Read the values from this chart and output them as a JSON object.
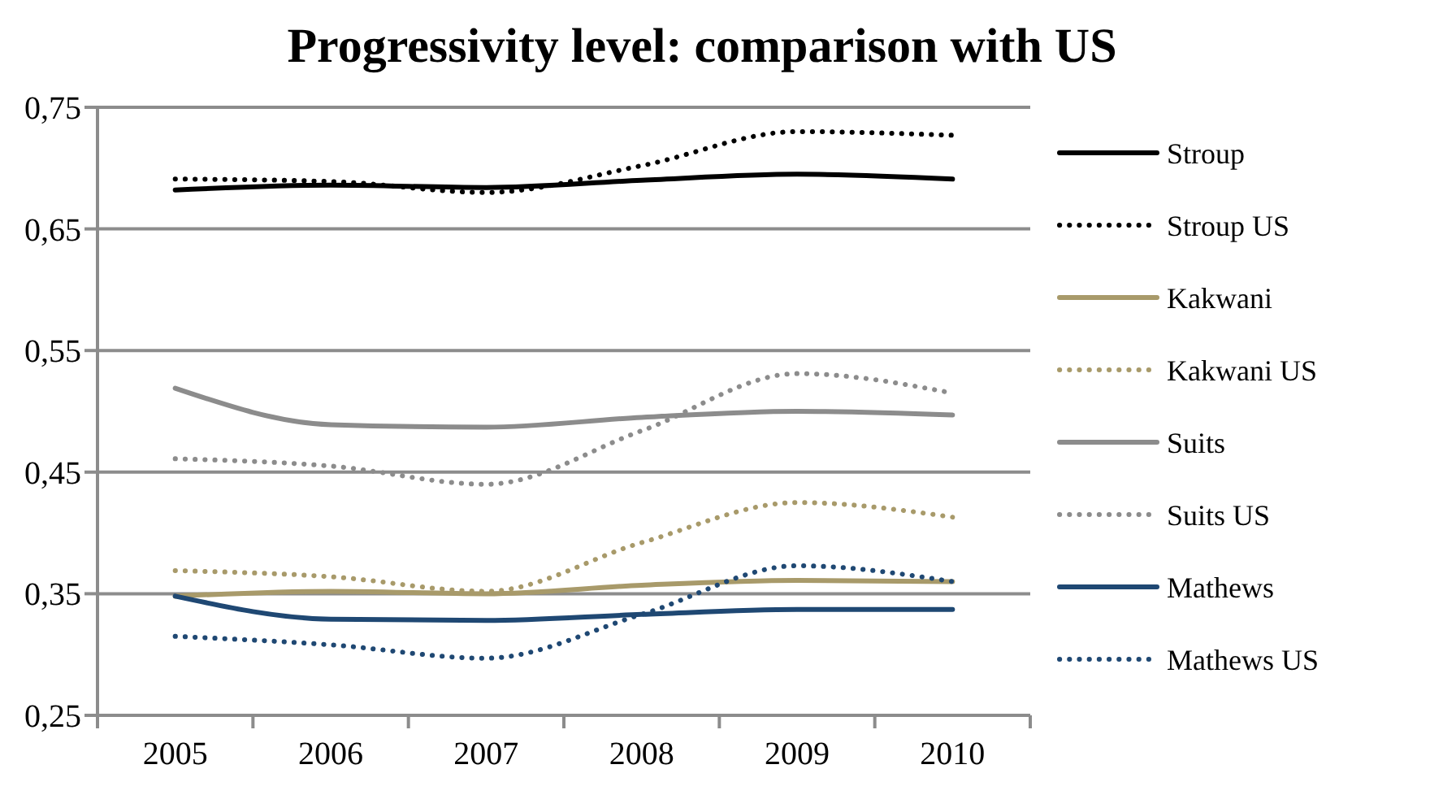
{
  "chart_data": {
    "type": "line",
    "title": "Progressivity level: comparison with US",
    "categories": [
      "2005",
      "2006",
      "2007",
      "2008",
      "2009",
      "2010"
    ],
    "ylim": [
      0.25,
      0.75
    ],
    "yticks": [
      {
        "value": 0.25,
        "label": "0,25"
      },
      {
        "value": 0.35,
        "label": "0,35"
      },
      {
        "value": 0.45,
        "label": "0,45"
      },
      {
        "value": 0.55,
        "label": "0,55"
      },
      {
        "value": 0.65,
        "label": "0,65"
      },
      {
        "value": 0.75,
        "label": "0,75"
      }
    ],
    "grid": "y",
    "legend": "right",
    "marker": "none",
    "series": [
      {
        "name": "Stroup",
        "color": "#000000",
        "line_style": "solid",
        "values": [
          0.682,
          0.686,
          0.684,
          0.69,
          0.695,
          0.691
        ]
      },
      {
        "name": "Stroup US",
        "color": "#000000",
        "line_style": "dotted",
        "values": [
          0.691,
          0.689,
          0.68,
          0.702,
          0.73,
          0.727
        ]
      },
      {
        "name": "Kakwani",
        "color": "#a89a6a",
        "line_style": "solid",
        "values": [
          0.348,
          0.352,
          0.35,
          0.357,
          0.361,
          0.36
        ]
      },
      {
        "name": "Kakwani US",
        "color": "#a89a6a",
        "line_style": "dotted",
        "values": [
          0.369,
          0.364,
          0.352,
          0.392,
          0.425,
          0.413
        ]
      },
      {
        "name": "Suits",
        "color": "#8c8c8c",
        "line_style": "solid",
        "values": [
          0.519,
          0.489,
          0.487,
          0.495,
          0.5,
          0.497
        ]
      },
      {
        "name": "Suits US",
        "color": "#8c8c8c",
        "line_style": "dotted",
        "values": [
          0.461,
          0.455,
          0.44,
          0.484,
          0.531,
          0.515
        ]
      },
      {
        "name": "Mathews",
        "color": "#1f4873",
        "line_style": "solid",
        "values": [
          0.348,
          0.329,
          0.328,
          0.333,
          0.337,
          0.337
        ]
      },
      {
        "name": "Mathews US",
        "color": "#1f4873",
        "line_style": "dotted",
        "values": [
          0.315,
          0.308,
          0.297,
          0.333,
          0.373,
          0.36
        ]
      }
    ]
  }
}
